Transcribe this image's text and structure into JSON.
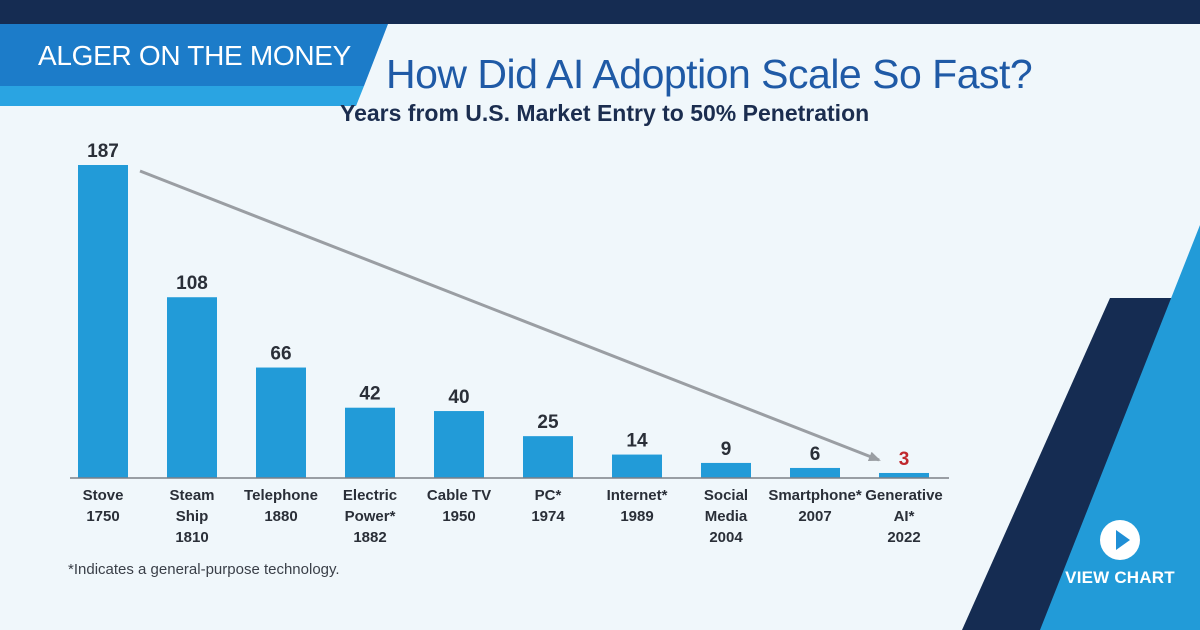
{
  "header": {
    "series_tag": "ALGER ON THE MONEY",
    "title": "How Did AI Adoption Scale So Fast?",
    "subtitle": "Years from U.S. Market Entry to 50% Penetration"
  },
  "footnote": "*Indicates a general-purpose technology.",
  "cta": {
    "label": "VIEW CHART",
    "icon": "play-icon"
  },
  "colors": {
    "bar": "#229bd8",
    "highlight_value": "#c0282d",
    "navy": "#152c52",
    "accent_blue": "#1f8fd6",
    "title_blue": "#1f5aa6",
    "trend_arrow": "#9a9ea3"
  },
  "chart_data": {
    "type": "bar",
    "title": "Years from U.S. Market Entry to 50% Penetration",
    "xlabel": "",
    "ylabel": "",
    "ylim": [
      0,
      190
    ],
    "grid": false,
    "legend": "none",
    "annotations": [
      "trend arrow from Stove to Generative AI*"
    ],
    "categories": [
      {
        "name": "Stove",
        "year": "1750"
      },
      {
        "name": "Steam Ship",
        "year": "1810"
      },
      {
        "name": "Telephone",
        "year": "1880"
      },
      {
        "name": "Electric Power*",
        "year": "1882"
      },
      {
        "name": "Cable TV",
        "year": "1950"
      },
      {
        "name": "PC*",
        "year": "1974"
      },
      {
        "name": "Internet*",
        "year": "1989"
      },
      {
        "name": "Social Media",
        "year": "2004"
      },
      {
        "name": "Smartphone*",
        "year": "2007"
      },
      {
        "name": "Generative AI*",
        "year": "2022"
      }
    ],
    "values": [
      187,
      108,
      66,
      42,
      40,
      25,
      14,
      9,
      6,
      3
    ],
    "highlight_index": 9
  }
}
